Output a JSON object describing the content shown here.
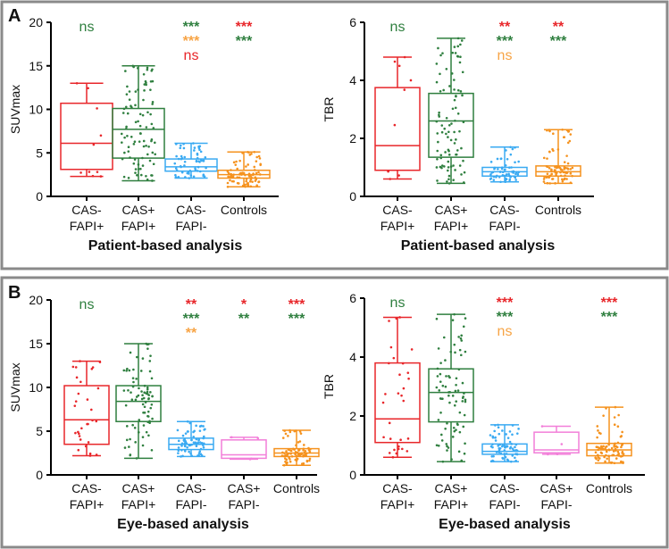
{
  "colors": {
    "red": "#e8262a",
    "green": "#2f7f3f",
    "blue": "#3aaaf2",
    "pink": "#f27fd9",
    "orange": "#f5921e",
    "annot_orange": "#f7a445"
  },
  "chart_data": [
    {
      "panel": "A",
      "type": "box",
      "title": "",
      "ylabel": "SUVmax",
      "xlabel": "Patient-based analysis",
      "ylim": [
        0,
        20
      ],
      "yticks": [
        "0",
        "5",
        "10",
        "15",
        "20"
      ],
      "ytick_values": [
        0,
        5,
        10,
        15,
        20
      ],
      "categories": [
        [
          "CAS-",
          "FAPI+"
        ],
        [
          "CAS+",
          "FAPI+"
        ],
        [
          "CAS-",
          "FAPI-"
        ],
        [
          "Controls"
        ]
      ],
      "series_colors": [
        "red",
        "green",
        "blue",
        "orange"
      ],
      "boxes": [
        {
          "min": 2.3,
          "q1": 3.1,
          "median": 6.1,
          "q3": 10.7,
          "max": 13.0,
          "n": 10
        },
        {
          "min": 1.8,
          "q1": 4.4,
          "median": 7.7,
          "q3": 10.1,
          "max": 15.0,
          "n": 90
        },
        {
          "min": 2.1,
          "q1": 2.9,
          "median": 3.4,
          "q3": 4.3,
          "max": 6.1,
          "n": 60
        },
        {
          "min": 1.1,
          "q1": 2.1,
          "median": 2.5,
          "q3": 3.0,
          "max": 5.1,
          "n": 80
        }
      ],
      "annotations": [
        [
          {
            "text": "ns",
            "color": "green"
          }
        ],
        [],
        [
          {
            "text": "***",
            "color": "green"
          },
          {
            "text": "***",
            "color": "annot_orange"
          },
          {
            "text": "ns",
            "color": "red"
          }
        ],
        [
          {
            "text": "***",
            "color": "red"
          },
          {
            "text": "***",
            "color": "green"
          }
        ]
      ]
    },
    {
      "panel": "A",
      "type": "box",
      "title": "",
      "ylabel": "TBR",
      "xlabel": "Patient-based analysis",
      "ylim": [
        0,
        6
      ],
      "yticks": [
        "0",
        "2",
        "4",
        "6"
      ],
      "ytick_values": [
        0,
        2,
        4,
        6
      ],
      "categories": [
        [
          "CAS-",
          "FAPI+"
        ],
        [
          "CAS+",
          "FAPI+"
        ],
        [
          "CAS-",
          "FAPI-"
        ],
        [
          "Controls"
        ]
      ],
      "series_colors": [
        "red",
        "green",
        "blue",
        "orange"
      ],
      "boxes": [
        {
          "min": 0.6,
          "q1": 0.9,
          "median": 1.75,
          "q3": 3.75,
          "max": 4.8,
          "n": 10
        },
        {
          "min": 0.45,
          "q1": 1.35,
          "median": 2.6,
          "q3": 3.55,
          "max": 5.45,
          "n": 90
        },
        {
          "min": 0.5,
          "q1": 0.7,
          "median": 0.85,
          "q3": 1.0,
          "max": 1.7,
          "n": 60
        },
        {
          "min": 0.45,
          "q1": 0.7,
          "median": 0.85,
          "q3": 1.05,
          "max": 2.3,
          "n": 80
        }
      ],
      "annotations": [
        [
          {
            "text": "ns",
            "color": "green"
          }
        ],
        [],
        [
          {
            "text": "**",
            "color": "red"
          },
          {
            "text": "***",
            "color": "green"
          },
          {
            "text": "ns",
            "color": "annot_orange"
          }
        ],
        [
          {
            "text": "**",
            "color": "red"
          },
          {
            "text": "***",
            "color": "green"
          }
        ]
      ]
    },
    {
      "panel": "B",
      "type": "box",
      "title": "",
      "ylabel": "SUVmax",
      "xlabel": "Eye-based analysis",
      "ylim": [
        0,
        20
      ],
      "yticks": [
        "0",
        "5",
        "10",
        "15",
        "20"
      ],
      "ytick_values": [
        0,
        5,
        10,
        15,
        20
      ],
      "categories": [
        [
          "CAS-",
          "FAPI+"
        ],
        [
          "CAS+",
          "FAPI+"
        ],
        [
          "CAS-",
          "FAPI-"
        ],
        [
          "CAS+",
          "FAPI-"
        ],
        [
          "Controls"
        ]
      ],
      "series_colors": [
        "red",
        "green",
        "blue",
        "pink",
        "orange"
      ],
      "boxes": [
        {
          "min": 2.2,
          "q1": 3.5,
          "median": 6.3,
          "q3": 10.2,
          "max": 13.0,
          "n": 30
        },
        {
          "min": 1.9,
          "q1": 6.1,
          "median": 8.4,
          "q3": 10.2,
          "max": 15.0,
          "n": 80
        },
        {
          "min": 2.1,
          "q1": 2.9,
          "median": 3.5,
          "q3": 4.2,
          "max": 6.1,
          "n": 70
        },
        {
          "min": 1.8,
          "q1": 1.9,
          "median": 2.3,
          "q3": 4.0,
          "max": 4.3,
          "n": 4
        },
        {
          "min": 1.1,
          "q1": 2.1,
          "median": 2.5,
          "q3": 3.0,
          "max": 5.1,
          "n": 80
        }
      ],
      "annotations": [
        [
          {
            "text": "ns",
            "color": "green"
          }
        ],
        [],
        [
          {
            "text": "**",
            "color": "red"
          },
          {
            "text": "***",
            "color": "green"
          },
          {
            "text": "**",
            "color": "annot_orange"
          }
        ],
        [
          {
            "text": "*",
            "color": "red"
          },
          {
            "text": "**",
            "color": "green"
          }
        ],
        [
          {
            "text": "***",
            "color": "red"
          },
          {
            "text": "***",
            "color": "green"
          }
        ]
      ]
    },
    {
      "panel": "B",
      "type": "box",
      "title": "",
      "ylabel": "TBR",
      "xlabel": "Eye-based analysis",
      "ylim": [
        0,
        6
      ],
      "yticks": [
        "0",
        "2",
        "4",
        "6"
      ],
      "ytick_values": [
        0,
        2,
        4,
        6
      ],
      "categories": [
        [
          "CAS-",
          "FAPI+"
        ],
        [
          "CAS+",
          "FAPI+"
        ],
        [
          "CAS-",
          "FAPI-"
        ],
        [
          "CAS+",
          "FAPI-"
        ],
        [
          "Controls"
        ]
      ],
      "series_colors": [
        "red",
        "green",
        "blue",
        "pink",
        "orange"
      ],
      "boxes": [
        {
          "min": 0.6,
          "q1": 1.1,
          "median": 1.9,
          "q3": 3.8,
          "max": 5.35,
          "n": 30
        },
        {
          "min": 0.45,
          "q1": 1.8,
          "median": 2.8,
          "q3": 3.6,
          "max": 5.45,
          "n": 80
        },
        {
          "min": 0.45,
          "q1": 0.7,
          "median": 0.8,
          "q3": 1.05,
          "max": 1.7,
          "n": 70
        },
        {
          "min": 0.7,
          "q1": 0.75,
          "median": 0.85,
          "q3": 1.45,
          "max": 1.65,
          "n": 4
        },
        {
          "min": 0.4,
          "q1": 0.65,
          "median": 0.85,
          "q3": 1.07,
          "max": 2.3,
          "n": 80
        }
      ],
      "annotations": [
        [
          {
            "text": "ns",
            "color": "green"
          }
        ],
        [],
        [
          {
            "text": "***",
            "color": "red"
          },
          {
            "text": "***",
            "color": "green"
          },
          {
            "text": "ns",
            "color": "annot_orange"
          }
        ],
        [],
        [
          {
            "text": "***",
            "color": "red"
          },
          {
            "text": "***",
            "color": "green"
          }
        ]
      ]
    }
  ],
  "panels": [
    {
      "letter": "A"
    },
    {
      "letter": "B"
    }
  ]
}
